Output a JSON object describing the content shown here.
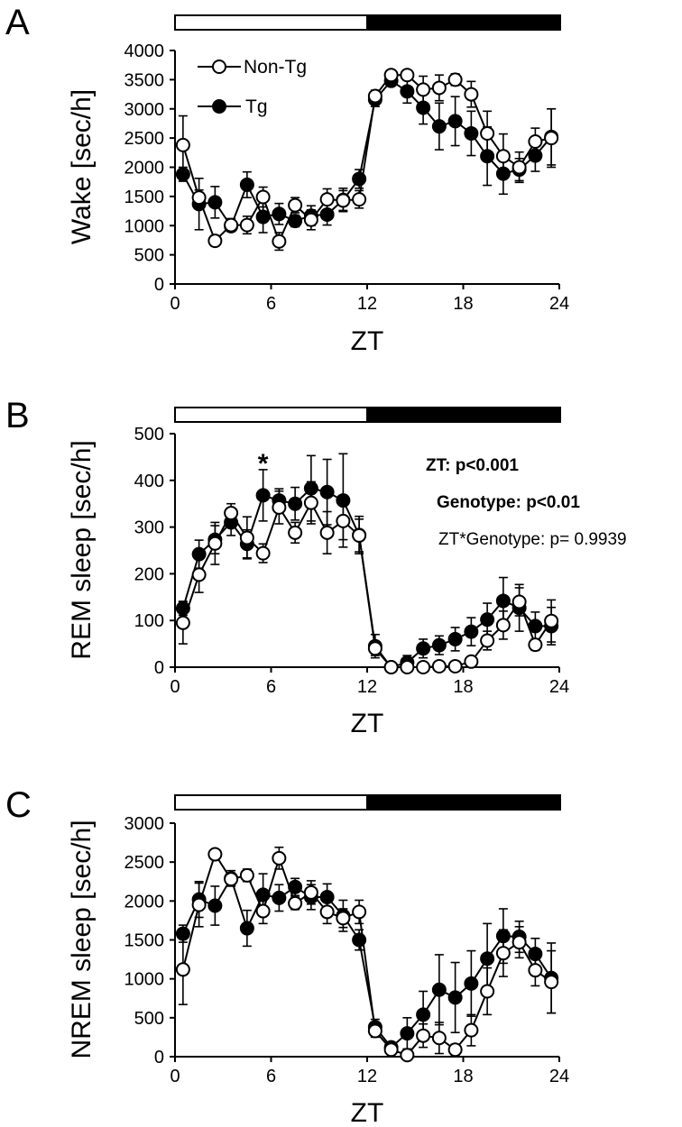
{
  "chart_data": [
    {
      "type": "line",
      "panel_label": "A",
      "title": "",
      "xlabel": "ZT",
      "ylabel": "Wake [sec/h]",
      "xlim": [
        0,
        24
      ],
      "ylim": [
        0,
        4000
      ],
      "xticks": [
        0,
        6,
        12,
        18,
        24
      ],
      "yticks": [
        0,
        500,
        1000,
        1500,
        2000,
        2500,
        3000,
        3500,
        4000
      ],
      "grid": false,
      "light_dark_bar": {
        "light": [
          0,
          12
        ],
        "dark": [
          12,
          24
        ]
      },
      "legend": {
        "position": "top-left",
        "entries": [
          "Non-Tg",
          "Tg"
        ]
      },
      "x": [
        0.5,
        1.5,
        2.5,
        3.5,
        4.5,
        5.5,
        6.5,
        7.5,
        8.5,
        9.5,
        10.5,
        11.5,
        12.5,
        13.5,
        14.5,
        15.5,
        16.5,
        17.5,
        18.5,
        19.5,
        20.5,
        21.5,
        22.5,
        23.5
      ],
      "series": [
        {
          "name": "Non-Tg",
          "marker": "open-circle",
          "values": [
            2380,
            1480,
            740,
            1010,
            1010,
            1490,
            730,
            1350,
            1100,
            1450,
            1430,
            1450,
            3220,
            3580,
            3580,
            3330,
            3360,
            3500,
            3250,
            2580,
            2190,
            2000,
            2440,
            2500
          ],
          "errors": [
            500,
            130,
            90,
            110,
            150,
            170,
            150,
            130,
            170,
            180,
            170,
            150,
            100,
            60,
            80,
            230,
            220,
            100,
            220,
            380,
            380,
            260,
            230,
            500
          ]
        },
        {
          "name": "Tg",
          "marker": "filled-circle",
          "values": [
            1880,
            1370,
            1400,
            990,
            1700,
            1150,
            1200,
            1080,
            1170,
            1190,
            1440,
            1800,
            3160,
            3480,
            3300,
            3020,
            2700,
            2790,
            2580,
            2190,
            1890,
            1960,
            2200,
            2520
          ],
          "errors": [
            120,
            440,
            270,
            90,
            220,
            270,
            180,
            100,
            170,
            180,
            200,
            160,
            120,
            80,
            200,
            280,
            400,
            420,
            380,
            500,
            350,
            190,
            270,
            480
          ]
        }
      ],
      "annotations": []
    },
    {
      "type": "line",
      "panel_label": "B",
      "title": "",
      "xlabel": "ZT",
      "ylabel": "REM sleep [sec/h]",
      "xlim": [
        0,
        24
      ],
      "ylim": [
        0,
        500
      ],
      "xticks": [
        0,
        6,
        12,
        18,
        24
      ],
      "yticks": [
        0,
        100,
        200,
        300,
        400,
        500
      ],
      "grid": false,
      "light_dark_bar": {
        "light": [
          0,
          12
        ],
        "dark": [
          12,
          24
        ]
      },
      "legend": null,
      "x": [
        0.5,
        1.5,
        2.5,
        3.5,
        4.5,
        5.5,
        6.5,
        7.5,
        8.5,
        9.5,
        10.5,
        11.5,
        12.5,
        13.5,
        14.5,
        15.5,
        16.5,
        17.5,
        18.5,
        19.5,
        20.5,
        21.5,
        22.5,
        23.5
      ],
      "series": [
        {
          "name": "Non-Tg",
          "marker": "open-circle",
          "values": [
            95,
            198,
            265,
            330,
            277,
            244,
            342,
            288,
            352,
            288,
            313,
            282,
            40,
            0,
            0,
            0,
            2,
            2,
            12,
            57,
            90,
            140,
            48,
            99
          ],
          "errors": [
            45,
            38,
            45,
            20,
            45,
            20,
            35,
            22,
            45,
            45,
            40,
            35,
            15,
            0,
            5,
            5,
            5,
            5,
            8,
            20,
            30,
            30,
            12,
            45
          ]
        },
        {
          "name": "Tg",
          "marker": "filled-circle",
          "values": [
            126,
            242,
            273,
            310,
            264,
            368,
            357,
            350,
            383,
            375,
            357,
            283,
            45,
            0,
            10,
            40,
            47,
            60,
            76,
            102,
            142,
            127,
            88,
            88
          ],
          "errors": [
            15,
            30,
            30,
            28,
            30,
            55,
            25,
            35,
            70,
            70,
            100,
            40,
            25,
            5,
            15,
            20,
            20,
            25,
            30,
            35,
            50,
            50,
            30,
            40
          ]
        }
      ],
      "annotations": [
        {
          "text": "ZT: p<0.001",
          "bold": true
        },
        {
          "text": "Genotype: p<0.01",
          "bold": true
        },
        {
          "text": "ZT*Genotype: p= 0.9939",
          "bold": false
        },
        {
          "text": "*",
          "at_x": 5.5,
          "at_y": 425
        }
      ]
    },
    {
      "type": "line",
      "panel_label": "C",
      "title": "",
      "xlabel": "ZT",
      "ylabel": "NREM sleep [sec/h]",
      "xlim": [
        0,
        24
      ],
      "ylim": [
        0,
        3000
      ],
      "xticks": [
        0,
        6,
        12,
        18,
        24
      ],
      "yticks": [
        0,
        500,
        1000,
        1500,
        2000,
        2500,
        3000
      ],
      "grid": false,
      "light_dark_bar": {
        "light": [
          0,
          12
        ],
        "dark": [
          12,
          24
        ]
      },
      "legend": null,
      "x": [
        0.5,
        1.5,
        2.5,
        3.5,
        4.5,
        5.5,
        6.5,
        7.5,
        8.5,
        9.5,
        10.5,
        11.5,
        12.5,
        13.5,
        14.5,
        15.5,
        16.5,
        17.5,
        18.5,
        19.5,
        20.5,
        21.5,
        22.5,
        23.5
      ],
      "series": [
        {
          "name": "Non-Tg",
          "marker": "open-circle",
          "values": [
            1120,
            1950,
            2600,
            2280,
            2330,
            1870,
            2550,
            1970,
            2110,
            1860,
            1780,
            1860,
            330,
            90,
            20,
            270,
            240,
            90,
            340,
            840,
            1330,
            1470,
            1110,
            960
          ],
          "errors": [
            450,
            280,
            0,
            80,
            80,
            160,
            140,
            80,
            150,
            150,
            120,
            150,
            80,
            50,
            20,
            150,
            200,
            70,
            200,
            300,
            300,
            200,
            200,
            400
          ]
        },
        {
          "name": "Tg",
          "marker": "filled-circle",
          "values": [
            1580,
            2020,
            1940,
            2290,
            1650,
            2080,
            2040,
            2180,
            2050,
            2050,
            1810,
            1500,
            380,
            120,
            300,
            540,
            860,
            760,
            940,
            1260,
            1550,
            1540,
            1320,
            1010
          ],
          "errors": [
            110,
            230,
            250,
            100,
            230,
            270,
            170,
            110,
            160,
            170,
            200,
            130,
            100,
            60,
            200,
            300,
            450,
            450,
            420,
            450,
            350,
            200,
            200,
            450
          ]
        }
      ],
      "annotations": []
    }
  ]
}
